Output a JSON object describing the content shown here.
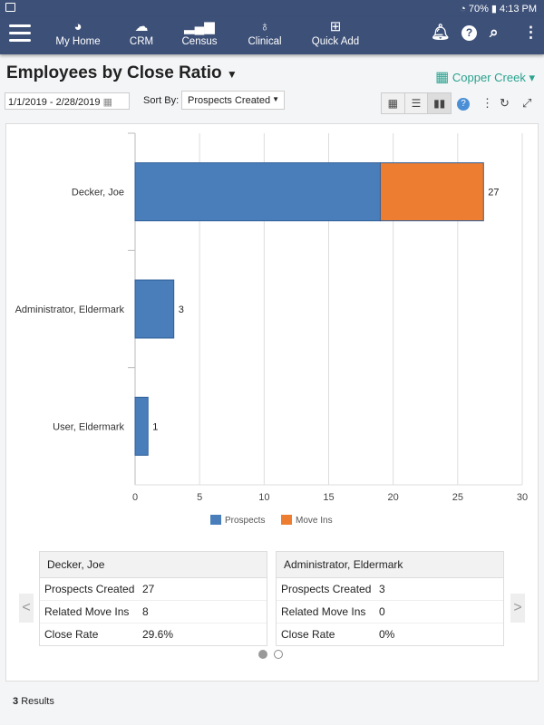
{
  "status": {
    "battery": "70%",
    "time": "4:13 PM"
  },
  "nav": {
    "items": [
      {
        "label": "My Home",
        "icon": "dashboard-icon"
      },
      {
        "label": "CRM",
        "icon": "cloud-icon"
      },
      {
        "label": "Census",
        "icon": "bar-signal-icon"
      },
      {
        "label": "Clinical",
        "icon": "stethoscope-icon"
      },
      {
        "label": "Quick Add",
        "icon": "plus-square-icon"
      }
    ]
  },
  "page": {
    "title": "Employees by Close Ratio",
    "facility": "Copper Creek",
    "date_range": "1/1/2019 - 2/28/2019",
    "sort_label": "Sort By:",
    "sort_value": "Prospects Created"
  },
  "chart_data": {
    "type": "bar",
    "orientation": "horizontal",
    "stacked": true,
    "categories": [
      "Decker, Joe",
      "Administrator, Eldermark",
      "User, Eldermark"
    ],
    "series": [
      {
        "name": "Prospects",
        "color": "#4a7ebb",
        "values": [
          19,
          3,
          1
        ]
      },
      {
        "name": "Move Ins",
        "color": "#ed7d31",
        "values": [
          8,
          0,
          0
        ]
      }
    ],
    "totals": [
      27,
      3,
      1
    ],
    "xlim": [
      0,
      30
    ],
    "xticks": [
      0,
      5,
      10,
      15,
      20,
      25,
      30
    ],
    "legend": "bottom"
  },
  "cards": [
    {
      "name": "Decker, Joe",
      "rows": [
        {
          "label": "Prospects Created",
          "value": "27"
        },
        {
          "label": "Related Move Ins",
          "value": "8"
        },
        {
          "label": "Close Rate",
          "value": "29.6%"
        }
      ]
    },
    {
      "name": "Administrator, Eldermark",
      "rows": [
        {
          "label": "Prospects Created",
          "value": "3"
        },
        {
          "label": "Related Move Ins",
          "value": "0"
        },
        {
          "label": "Close Rate",
          "value": "0%"
        }
      ]
    }
  ],
  "footer": {
    "count": "3",
    "label": "Results"
  }
}
